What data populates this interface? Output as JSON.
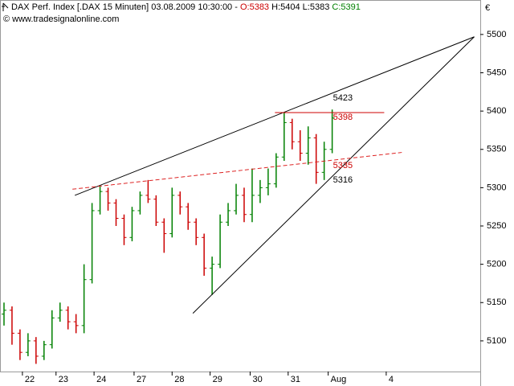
{
  "chart_data": {
    "type": "ohlc",
    "header": {
      "title": "DAX Perf. Index [.DAX  15 Minuten] 03.08.2009 10:30:00 -",
      "open": "O:5383",
      "high": "H:5404",
      "low": "L:5383",
      "close": "C:5391",
      "source": "© www.tradesignalonline.com"
    },
    "currency": "€",
    "x": [
      1,
      3,
      5,
      7,
      9,
      11,
      13,
      15,
      17,
      19,
      21,
      23,
      25,
      27,
      29,
      31,
      33,
      35,
      37,
      39,
      41,
      43,
      45,
      47,
      49,
      51,
      53,
      55,
      57,
      59,
      61,
      63,
      65,
      67,
      69,
      71,
      73,
      75,
      77,
      79,
      81,
      83
    ],
    "open": [
      5135,
      5140,
      5110,
      5085,
      5100,
      5080,
      5095,
      5130,
      5140,
      5125,
      5120,
      5180,
      5270,
      5295,
      5280,
      5260,
      5235,
      5270,
      5290,
      5285,
      5255,
      5240,
      5290,
      5275,
      5255,
      5235,
      5195,
      5200,
      5255,
      5270,
      5290,
      5265,
      5290,
      5300,
      5305,
      5340,
      5385,
      5360,
      5345,
      5365,
      5320,
      5350
    ],
    "high": [
      5150,
      5145,
      5115,
      5110,
      5105,
      5100,
      5140,
      5150,
      5145,
      5135,
      5200,
      5280,
      5302,
      5300,
      5285,
      5265,
      5275,
      5295,
      5310,
      5290,
      5260,
      5300,
      5295,
      5280,
      5260,
      5240,
      5210,
      5265,
      5280,
      5305,
      5300,
      5325,
      5310,
      5325,
      5345,
      5398,
      5390,
      5375,
      5380,
      5370,
      5360,
      5402
    ],
    "low": [
      5120,
      5095,
      5075,
      5080,
      5070,
      5075,
      5090,
      5125,
      5115,
      5110,
      5110,
      5175,
      5265,
      5270,
      5250,
      5225,
      5230,
      5265,
      5280,
      5250,
      5215,
      5235,
      5265,
      5245,
      5225,
      5185,
      5160,
      5195,
      5250,
      5265,
      5255,
      5255,
      5280,
      5290,
      5300,
      5335,
      5350,
      5335,
      5330,
      5305,
      5310,
      5345
    ],
    "close": [
      5140,
      5110,
      5085,
      5100,
      5080,
      5095,
      5130,
      5140,
      5125,
      5120,
      5180,
      5270,
      5295,
      5280,
      5260,
      5235,
      5270,
      5290,
      5285,
      5255,
      5240,
      5290,
      5275,
      5255,
      5235,
      5195,
      5200,
      5255,
      5270,
      5290,
      5265,
      5290,
      5300,
      5305,
      5340,
      5385,
      5360,
      5345,
      5365,
      5320,
      5350,
      5391
    ],
    "up_color": "#008000",
    "down_color": "#cc0000",
    "xlim": [
      0,
      120
    ],
    "ylim": [
      5060,
      5545
    ],
    "yticks": [
      5100,
      5150,
      5200,
      5250,
      5300,
      5350,
      5400,
      5450,
      5500
    ],
    "xticks": [
      {
        "value": 5.6,
        "label": "22"
      },
      {
        "value": 14,
        "label": "23"
      },
      {
        "value": 23.5,
        "label": "24"
      },
      {
        "value": 33.5,
        "label": "27"
      },
      {
        "value": 43,
        "label": "28"
      },
      {
        "value": 52.5,
        "label": "29"
      },
      {
        "value": 62.5,
        "label": "30"
      },
      {
        "value": 72,
        "label": "31"
      },
      {
        "value": 82,
        "label": "Aug"
      },
      {
        "value": 96.5,
        "label": "4"
      }
    ],
    "lines": [
      {
        "x": [
          18.7,
          118.5
        ],
        "y": [
          5290,
          5497
        ],
        "color": "#000000",
        "dash": false
      },
      {
        "x": [
          48.2,
          118.5
        ],
        "y": [
          5136,
          5497
        ],
        "color": "#000000",
        "dash": false
      },
      {
        "x": [
          18.1,
          100.4
        ],
        "y": [
          5298,
          5346
        ],
        "color": "#dd2222",
        "dash": true
      },
      {
        "x": [
          68.7,
          96
        ],
        "y": [
          5398,
          5398
        ],
        "color": "#cc0000",
        "dash": false
      }
    ],
    "annotations": [
      {
        "x": 83,
        "y": 5423,
        "label": "5423",
        "color": "#000000"
      },
      {
        "x": 83,
        "y": 5398,
        "label": "5398",
        "color": "#cc0000"
      },
      {
        "x": 83,
        "y": 5335,
        "label": "5335",
        "color": "#cc0000"
      },
      {
        "x": 83,
        "y": 5316,
        "label": "5316",
        "color": "#000000"
      }
    ]
  }
}
